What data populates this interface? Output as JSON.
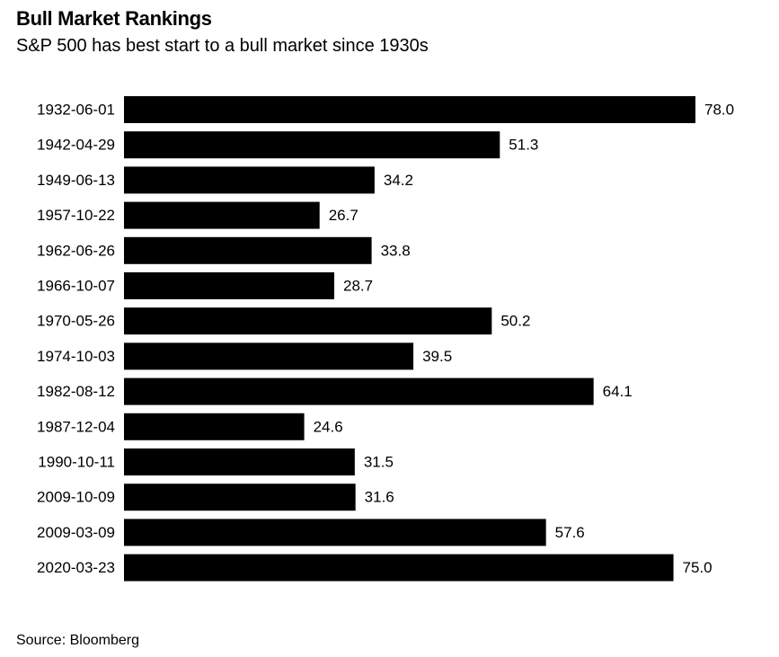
{
  "header": {
    "title": "Bull Market Rankings",
    "subtitle": "S&P 500 has best start to a bull market since 1930s"
  },
  "footer": {
    "source": "Source: Bloomberg"
  },
  "chart_data": {
    "type": "bar",
    "orientation": "horizontal",
    "title": "Bull Market Rankings",
    "subtitle": "S&P 500 has best start to a bull market since 1930s",
    "xlabel": "",
    "ylabel": "",
    "grid": false,
    "legend": "none",
    "bar_color": "#000000",
    "categories": [
      "1932-06-01",
      "1942-04-29",
      "1949-06-13",
      "1957-10-22",
      "1962-06-26",
      "1966-10-07",
      "1970-05-26",
      "1974-10-03",
      "1982-08-12",
      "1987-12-04",
      "1990-10-11",
      "2009-10-09",
      "2009-03-09",
      "2020-03-23"
    ],
    "values": [
      78.0,
      51.3,
      34.2,
      26.7,
      33.8,
      28.7,
      50.2,
      39.5,
      64.1,
      24.6,
      31.5,
      31.6,
      57.6,
      75.0
    ],
    "value_labels": [
      "78.0",
      "51.3",
      "34.2",
      "26.7",
      "33.8",
      "28.7",
      "50.2",
      "39.5",
      "64.1",
      "24.6",
      "31.5",
      "31.6",
      "57.6",
      "75.0"
    ],
    "xlim": [
      0,
      78.0
    ]
  }
}
